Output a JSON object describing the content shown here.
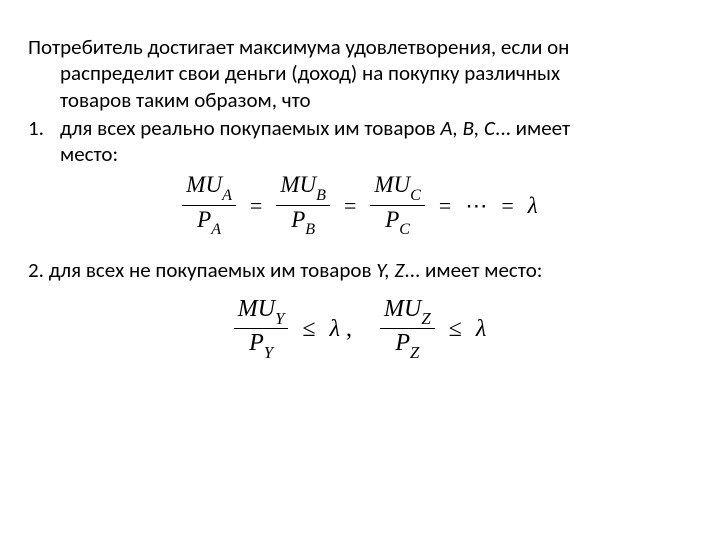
{
  "intro_line1": "Потребитель достигает максимума удовлетворения, если он",
  "intro_cont1": "распределит свои деньги (доход) на покупку различных",
  "intro_cont2": "товаров таким образом, что",
  "item1_num": "1.",
  "item1_text_a": "для всех реально покупаемых им товаров ",
  "item1_text_vars": "А, В, С",
  "item1_text_b": "... имеет",
  "item1_text_c": "место:",
  "eq1": {
    "terms": [
      {
        "num_main": "MU",
        "num_sub": "A",
        "den_main": "P",
        "den_sub": "A"
      },
      {
        "num_main": "MU",
        "num_sub": "B",
        "den_main": "P",
        "den_sub": "B"
      },
      {
        "num_main": "MU",
        "num_sub": "C",
        "den_main": "P",
        "den_sub": "C"
      }
    ],
    "sep": "=",
    "dots": "⋯",
    "tail": "λ"
  },
  "item2_a": "2. для всех не покупаемых им товаров ",
  "item2_vars": "Y, Z",
  "item2_b": "... имеет место:",
  "eq2": {
    "terms": [
      {
        "num_main": "MU",
        "num_sub": "Y",
        "den_main": "P",
        "den_sub": "Y"
      },
      {
        "num_main": "MU",
        "num_sub": "Z",
        "den_main": "P",
        "den_sub": "Z"
      }
    ],
    "rel": "≤",
    "tail": "λ",
    "comma": ","
  }
}
